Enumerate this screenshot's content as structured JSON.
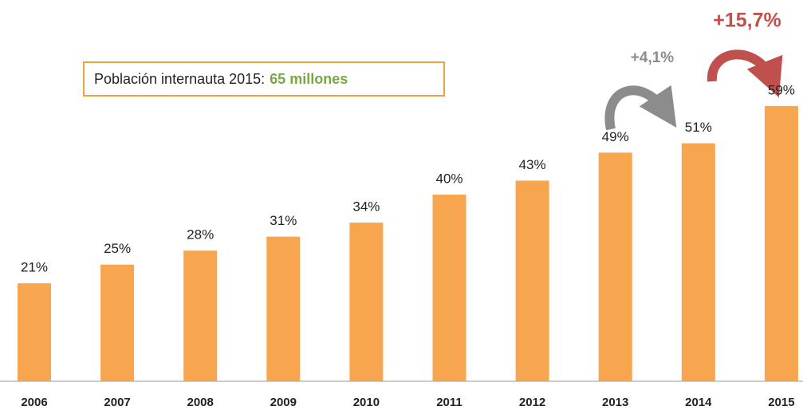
{
  "chart_data": {
    "type": "bar",
    "categories": [
      "2006",
      "2007",
      "2008",
      "2009",
      "2010",
      "2011",
      "2012",
      "2013",
      "2014",
      "2015"
    ],
    "values": [
      21,
      25,
      28,
      31,
      34,
      40,
      43,
      49,
      51,
      59
    ],
    "value_labels": [
      "21%",
      "25%",
      "28%",
      "31%",
      "34%",
      "40%",
      "43%",
      "49%",
      "51%",
      "59%"
    ],
    "color": "#f7a54f",
    "box": {
      "label": "Población internauta 2015:",
      "value": "65 millones"
    },
    "annotations": [
      "+4,1%",
      "+15,7%"
    ]
  }
}
